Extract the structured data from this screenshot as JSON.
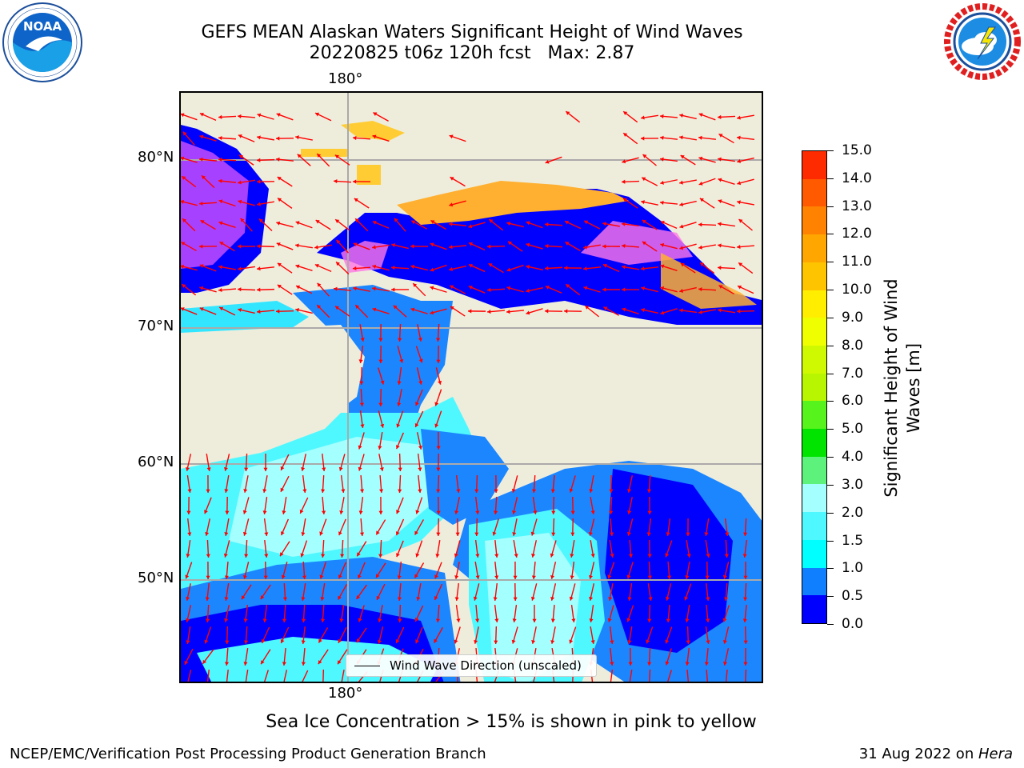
{
  "header": {
    "title_line1": "GEFS MEAN Alaskan Waters Significant Height of Wind Waves",
    "title_line2": "20220825 t06z 120h fcst   Max: 2.87"
  },
  "logos": {
    "noaa": {
      "text": "NOAA",
      "ring_text": "NATIONAL OCEANIC AND ATMOSPHERIC ADMINISTRATION · U.S. DEPARTMENT OF COMMERCE"
    },
    "nws": {
      "ring_text": "NATIONAL WEATHER SERVICE"
    }
  },
  "map": {
    "lon_label_top": "180°",
    "lon_label_bottom": "180°",
    "lat_labels": [
      "80°N",
      "70°N",
      "60°N",
      "50°N"
    ],
    "legend_text": "Wind Wave Direction (unscaled)",
    "colors": {
      "land": "#eeeddc",
      "arrow": "#ff0000",
      "gridline": "#aaaaaa"
    }
  },
  "colorbar": {
    "title": "Significant Height of Wind Waves [m]",
    "title_line1": "Significant Height of Wind",
    "title_line2": "Waves [m]",
    "ticks": [
      "0.0",
      "0.5",
      "1.0",
      "1.5",
      "2.0",
      "3.0",
      "4.0",
      "5.0",
      "6.0",
      "7.0",
      "8.0",
      "9.0",
      "10.0",
      "11.0",
      "12.0",
      "13.0",
      "14.0",
      "15.0"
    ],
    "colors": [
      "#0000ff",
      "#0f7fff",
      "#00ffff",
      "#4ff8ff",
      "#a4ffff",
      "#5cf27c",
      "#00e400",
      "#56f31c",
      "#b8f500",
      "#cff900",
      "#f0ff00",
      "#ffee00",
      "#ffc400",
      "#ffa600",
      "#ff8200",
      "#ff5a00",
      "#ff2b00"
    ]
  },
  "footer": {
    "note": "Sea Ice Concentration > 15% is shown in pink to yellow",
    "left": "NCEP/EMC/Verification Post Processing Product Generation Branch",
    "date": "31 Aug 2022 on ",
    "machine": "Hera"
  }
}
